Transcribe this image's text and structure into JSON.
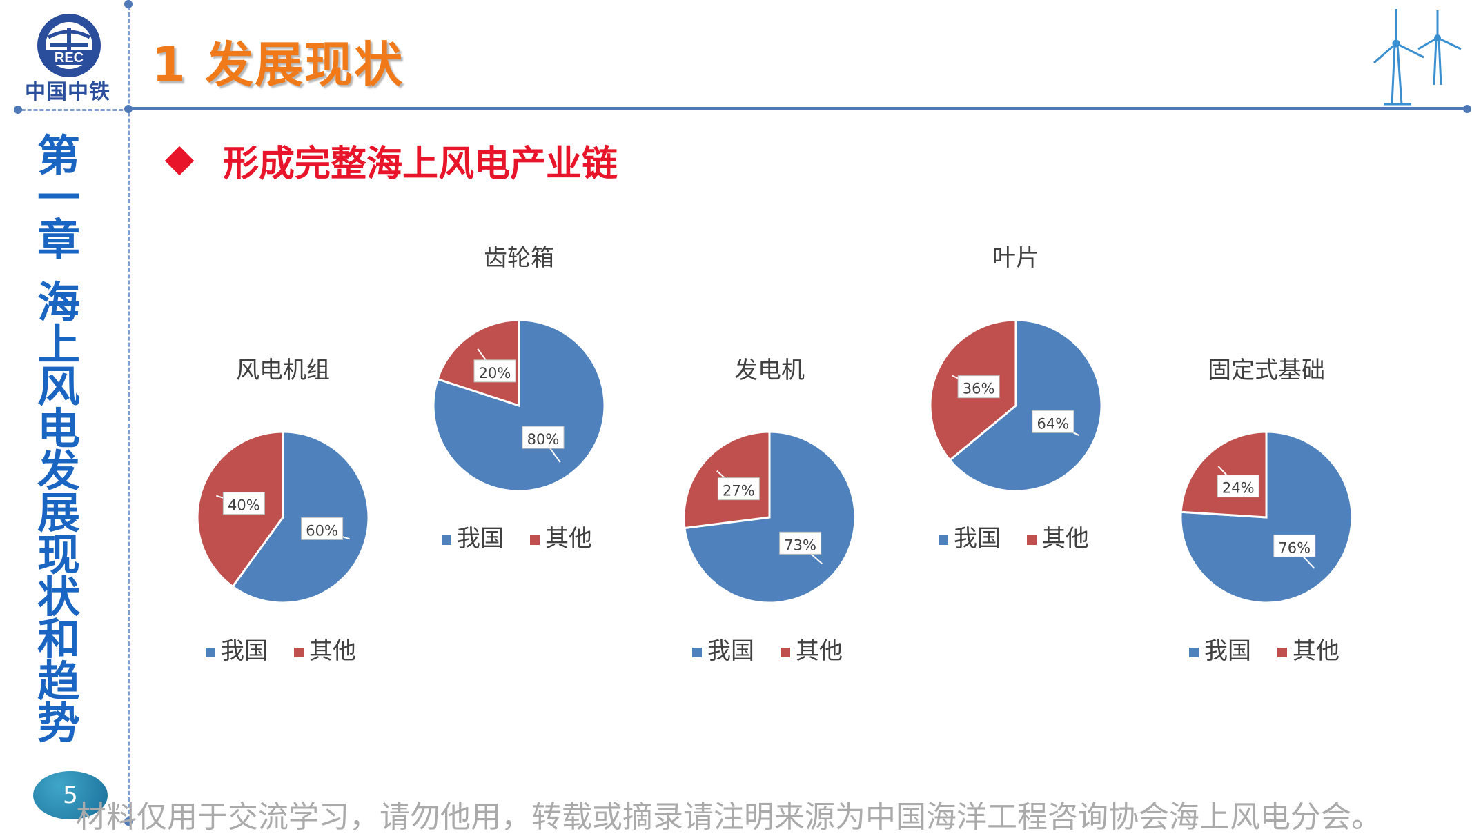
{
  "header": {
    "logo_text": "中国中铁",
    "page_title": "1 发展现状"
  },
  "sidebar": {
    "chapter_chars": [
      "第",
      "一",
      "章",
      "海",
      "上",
      "风",
      "电",
      "发",
      "展",
      "现",
      "状",
      "和",
      "趋",
      "势"
    ]
  },
  "section": {
    "subtitle": "形成完整海上风电产业链"
  },
  "colors": {
    "china": "#4f81bd",
    "other": "#c0504d",
    "title_orange": "#f07a1a",
    "subtitle_red": "#e8142a",
    "chapter_blue": "#1a64c2"
  },
  "legend": {
    "china": "我国",
    "other": "其他"
  },
  "chart_data": [
    {
      "type": "pie",
      "title": "风电机组",
      "labels": [
        "我国",
        "其他"
      ],
      "values": [
        60,
        40
      ],
      "value_labels": [
        "60%",
        "40%"
      ]
    },
    {
      "type": "pie",
      "title": "齿轮箱",
      "labels": [
        "我国",
        "其他"
      ],
      "values": [
        80,
        20
      ],
      "value_labels": [
        "80%",
        "20%"
      ]
    },
    {
      "type": "pie",
      "title": "发电机",
      "labels": [
        "我国",
        "其他"
      ],
      "values": [
        73,
        27
      ],
      "value_labels": [
        "73%",
        "27%"
      ]
    },
    {
      "type": "pie",
      "title": "叶片",
      "labels": [
        "我国",
        "其他"
      ],
      "values": [
        64,
        36
      ],
      "value_labels": [
        "64%",
        "36%"
      ]
    },
    {
      "type": "pie",
      "title": "固定式基础",
      "labels": [
        "我国",
        "其他"
      ],
      "values": [
        76,
        24
      ],
      "value_labels": [
        "76%",
        "24%"
      ]
    }
  ],
  "footer": {
    "page_number": "5",
    "note": "材料仅用于交流学习，请勿他用，转载或摘录请注明来源为中国海洋工程咨询协会海上风电分会。"
  }
}
